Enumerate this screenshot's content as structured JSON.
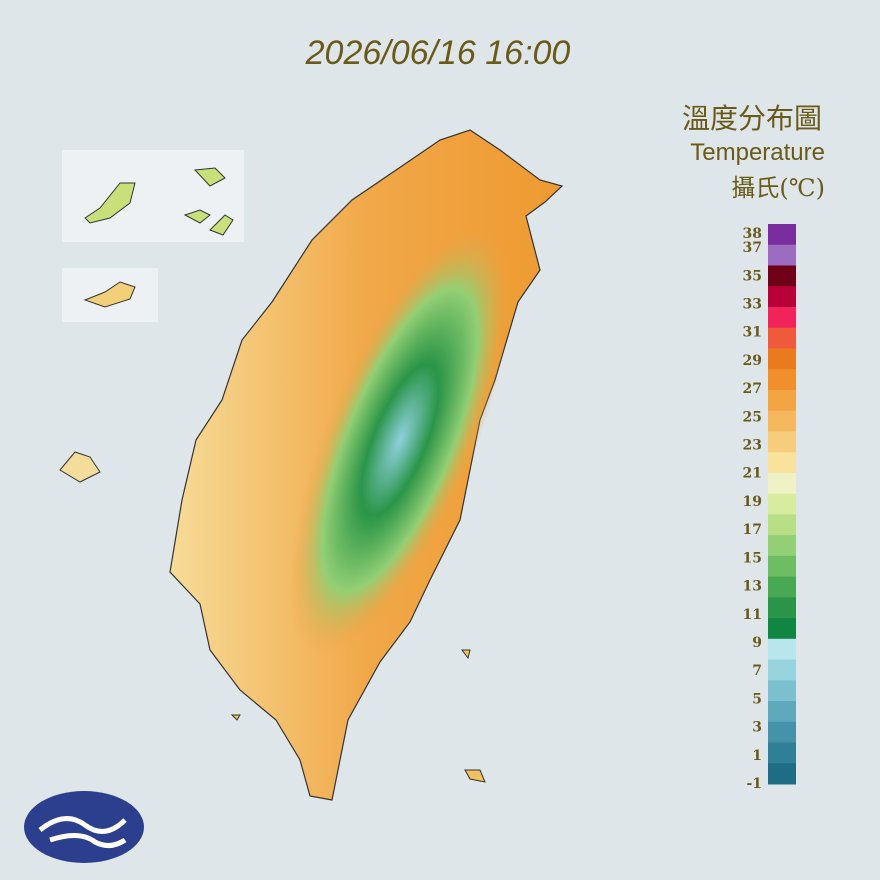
{
  "header": {
    "timestamp": "2026/06/16 16:00"
  },
  "legend": {
    "title": "溫度分布圖",
    "subtitle": "Temperature",
    "unit": "攝氏(℃)",
    "labels": [
      38,
      37,
      35,
      33,
      31,
      29,
      27,
      25,
      23,
      21,
      19,
      17,
      15,
      13,
      11,
      9,
      7,
      5,
      3,
      1,
      -1
    ],
    "colors": [
      "#7a2e9e",
      "#9b6cbf",
      "#6e0018",
      "#b8003a",
      "#f0245a",
      "#ef5a3c",
      "#ea7a1e",
      "#f08f2c",
      "#f3a443",
      "#f5b85e",
      "#f7cc7c",
      "#f8e29c",
      "#eef2c4",
      "#d8eca0",
      "#b8de86",
      "#93cf74",
      "#6fbd62",
      "#49a853",
      "#2a9548",
      "#118642",
      "#b8e6ec",
      "#98d4de",
      "#7cc0cf",
      "#5fa9bd",
      "#4593a9",
      "#2f7f96",
      "#1f6d84"
    ]
  }
}
